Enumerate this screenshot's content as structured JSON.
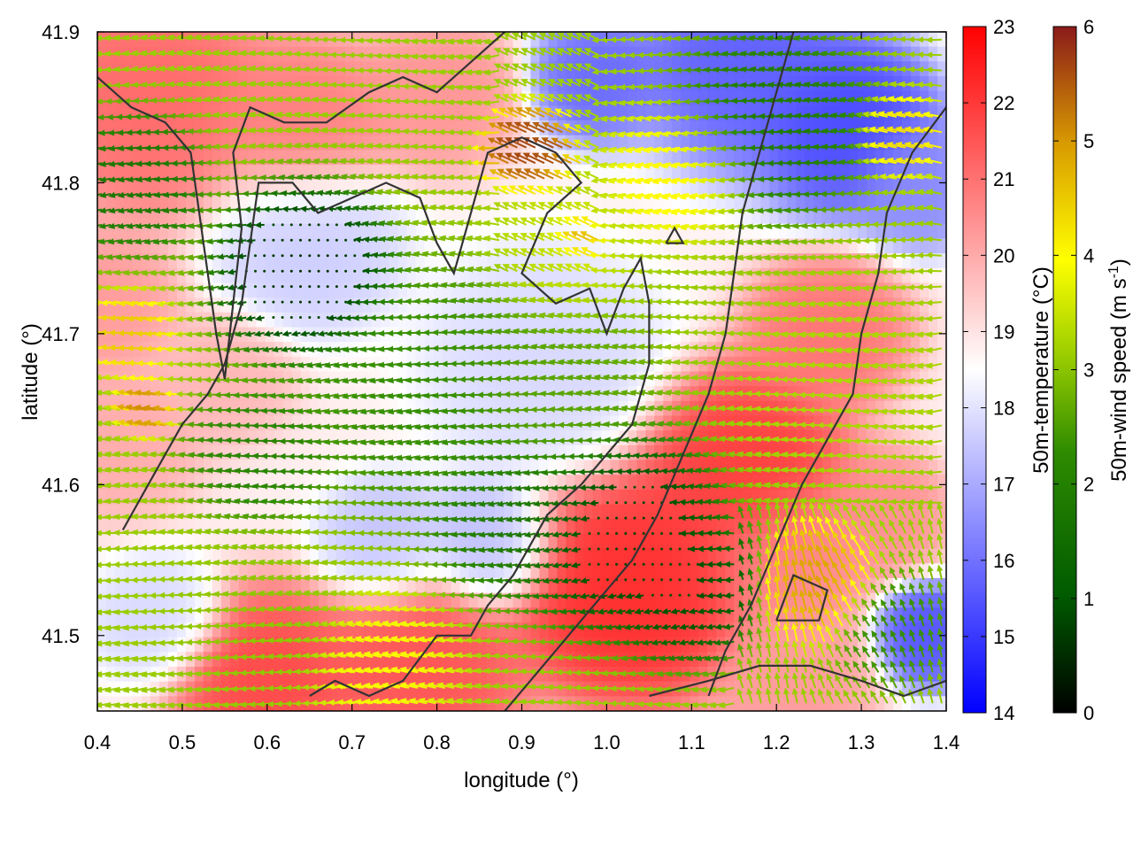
{
  "chart_data": {
    "type": "heatmap",
    "title": "",
    "xlabel": "longitude (°)",
    "ylabel": "latitude (°)",
    "xlim": [
      0.4,
      1.4
    ],
    "ylim": [
      41.45,
      41.9
    ],
    "xticks": [
      "0.4",
      "0.5",
      "0.6",
      "0.7",
      "0.8",
      "0.9",
      "1.0",
      "1.1",
      "1.2",
      "1.3",
      "1.4"
    ],
    "yticks": [
      "41.5",
      "41.6",
      "41.7",
      "41.8",
      "41.9"
    ],
    "temperature_colorbar": {
      "label": "50m-temperature (°C)",
      "range": [
        14,
        23
      ],
      "ticks": [
        "14",
        "15",
        "16",
        "17",
        "18",
        "19",
        "20",
        "21",
        "22",
        "23"
      ],
      "colors": [
        "#0000ff",
        "#ffffff",
        "#ff0000"
      ]
    },
    "wind_colorbar": {
      "label_main": "50m-wind speed (m s",
      "label_sup": "-1",
      "label_end": ")",
      "range": [
        0,
        6
      ],
      "ticks": [
        "0",
        "1",
        "2",
        "3",
        "4",
        "5",
        "6"
      ],
      "colors": [
        "#000000",
        "#005a00",
        "#2e8b00",
        "#9acd00",
        "#ffff00",
        "#d89a00",
        "#8b1a1a"
      ]
    },
    "contour_color": "#333333",
    "temperature_blobs": [
      {
        "lon": 0.46,
        "lat": 41.86,
        "temp": 21.2,
        "r": 0.09
      },
      {
        "lon": 0.4,
        "lat": 41.72,
        "temp": 20.3,
        "r": 0.06
      },
      {
        "lon": 0.43,
        "lat": 41.63,
        "temp": 20.0,
        "r": 0.06
      },
      {
        "lon": 0.64,
        "lat": 41.84,
        "temp": 20.8,
        "r": 0.07
      },
      {
        "lon": 0.8,
        "lat": 41.86,
        "temp": 20.4,
        "r": 0.06
      },
      {
        "lon": 0.65,
        "lat": 41.76,
        "temp": 17.6,
        "r": 0.07
      },
      {
        "lon": 0.55,
        "lat": 41.67,
        "temp": 19.8,
        "r": 0.05
      },
      {
        "lon": 0.99,
        "lat": 41.87,
        "temp": 15.8,
        "r": 0.05
      },
      {
        "lon": 1.16,
        "lat": 41.88,
        "temp": 15.6,
        "r": 0.08
      },
      {
        "lon": 1.28,
        "lat": 41.84,
        "temp": 15.2,
        "r": 0.07
      },
      {
        "lon": 1.37,
        "lat": 41.8,
        "temp": 16.4,
        "r": 0.05
      },
      {
        "lon": 0.93,
        "lat": 41.68,
        "temp": 17.8,
        "r": 0.09
      },
      {
        "lon": 0.86,
        "lat": 41.56,
        "temp": 17.3,
        "r": 0.05
      },
      {
        "lon": 0.74,
        "lat": 41.56,
        "temp": 17.4,
        "r": 0.05
      },
      {
        "lon": 1.03,
        "lat": 41.53,
        "temp": 22.3,
        "r": 0.09
      },
      {
        "lon": 1.16,
        "lat": 41.61,
        "temp": 22.0,
        "r": 0.08
      },
      {
        "lon": 1.26,
        "lat": 41.7,
        "temp": 21.0,
        "r": 0.06
      },
      {
        "lon": 1.22,
        "lat": 41.55,
        "temp": 20.6,
        "r": 0.06
      },
      {
        "lon": 1.32,
        "lat": 41.58,
        "temp": 20.5,
        "r": 0.05
      },
      {
        "lon": 0.78,
        "lat": 41.48,
        "temp": 21.6,
        "r": 0.08
      },
      {
        "lon": 0.6,
        "lat": 41.47,
        "temp": 21.8,
        "r": 0.07
      },
      {
        "lon": 1.22,
        "lat": 41.47,
        "temp": 20.3,
        "r": 0.06
      },
      {
        "lon": 1.38,
        "lat": 41.5,
        "temp": 15.4,
        "r": 0.04
      },
      {
        "lon": 0.47,
        "lat": 41.51,
        "temp": 17.8,
        "r": 0.05
      }
    ],
    "wind_blobs": [
      {
        "lon": 0.65,
        "lat": 41.74,
        "speed": 0.4,
        "r": 0.06
      },
      {
        "lon": 0.6,
        "lat": 41.62,
        "speed": 1.8,
        "r": 0.05
      },
      {
        "lon": 0.8,
        "lat": 41.66,
        "speed": 2.0,
        "r": 0.09
      },
      {
        "lon": 0.95,
        "lat": 41.66,
        "speed": 2.4,
        "r": 0.07
      },
      {
        "lon": 0.9,
        "lat": 41.58,
        "speed": 1.6,
        "r": 0.06
      },
      {
        "lon": 1.02,
        "lat": 41.57,
        "speed": 0.6,
        "r": 0.07
      },
      {
        "lon": 1.1,
        "lat": 41.53,
        "speed": 0.8,
        "r": 0.05
      },
      {
        "lon": 0.96,
        "lat": 41.75,
        "speed": 3.4,
        "r": 0.05
      },
      {
        "lon": 0.92,
        "lat": 41.82,
        "speed": 5.8,
        "r": 0.03
      },
      {
        "lon": 0.98,
        "lat": 41.76,
        "speed": 5.6,
        "r": 0.02
      },
      {
        "lon": 1.1,
        "lat": 41.81,
        "speed": 4.2,
        "r": 0.05
      },
      {
        "lon": 1.2,
        "lat": 41.84,
        "speed": 1.6,
        "r": 0.07
      },
      {
        "lon": 1.36,
        "lat": 41.83,
        "speed": 4.4,
        "r": 0.03
      },
      {
        "lon": 0.45,
        "lat": 41.8,
        "speed": 1.5,
        "r": 0.05
      },
      {
        "lon": 0.45,
        "lat": 41.7,
        "speed": 4.6,
        "r": 0.03
      },
      {
        "lon": 0.47,
        "lat": 41.65,
        "speed": 5.2,
        "r": 0.02
      },
      {
        "lon": 1.25,
        "lat": 41.53,
        "speed": 5.0,
        "r": 0.04
      },
      {
        "lon": 1.3,
        "lat": 41.67,
        "speed": 3.2,
        "r": 0.07
      },
      {
        "lon": 0.75,
        "lat": 41.48,
        "speed": 4.0,
        "r": 0.05
      },
      {
        "lon": 0.6,
        "lat": 41.51,
        "speed": 2.9,
        "r": 0.06
      },
      {
        "lon": 1.34,
        "lat": 41.5,
        "speed": 2.0,
        "r": 0.04
      }
    ],
    "contours": [
      [
        [
          0.43,
          41.57
        ],
        [
          0.46,
          41.6
        ],
        [
          0.5,
          41.64
        ],
        [
          0.53,
          41.66
        ],
        [
          0.55,
          41.68
        ],
        [
          0.57,
          41.72
        ],
        [
          0.58,
          41.76
        ],
        [
          0.59,
          41.8
        ],
        [
          0.63,
          41.8
        ],
        [
          0.66,
          41.78
        ],
        [
          0.7,
          41.79
        ],
        [
          0.74,
          41.8
        ],
        [
          0.78,
          41.79
        ],
        [
          0.8,
          41.76
        ],
        [
          0.82,
          41.74
        ],
        [
          0.84,
          41.78
        ],
        [
          0.86,
          41.82
        ],
        [
          0.9,
          41.83
        ],
        [
          0.94,
          41.82
        ],
        [
          0.97,
          41.8
        ],
        [
          0.93,
          41.78
        ],
        [
          0.9,
          41.74
        ],
        [
          0.94,
          41.72
        ],
        [
          0.98,
          41.73
        ],
        [
          1.0,
          41.7
        ],
        [
          1.02,
          41.73
        ],
        [
          1.04,
          41.75
        ],
        [
          1.05,
          41.72
        ],
        [
          1.05,
          41.68
        ],
        [
          1.03,
          41.64
        ],
        [
          1.0,
          41.62
        ],
        [
          0.97,
          41.6
        ],
        [
          0.93,
          41.58
        ],
        [
          0.89,
          41.54
        ],
        [
          0.86,
          41.52
        ],
        [
          0.84,
          41.5
        ],
        [
          0.8,
          41.5
        ],
        [
          0.76,
          41.47
        ],
        [
          0.72,
          41.46
        ],
        [
          0.68,
          41.47
        ],
        [
          0.65,
          41.46
        ]
      ],
      [
        [
          0.4,
          41.87
        ],
        [
          0.44,
          41.85
        ],
        [
          0.48,
          41.84
        ],
        [
          0.51,
          41.82
        ],
        [
          0.52,
          41.78
        ],
        [
          0.53,
          41.74
        ],
        [
          0.54,
          41.7
        ],
        [
          0.55,
          41.67
        ],
        [
          0.56,
          41.72
        ],
        [
          0.57,
          41.77
        ],
        [
          0.56,
          41.82
        ],
        [
          0.58,
          41.85
        ],
        [
          0.62,
          41.84
        ],
        [
          0.67,
          41.84
        ],
        [
          0.72,
          41.86
        ],
        [
          0.76,
          41.87
        ],
        [
          0.8,
          41.86
        ],
        [
          0.84,
          41.88
        ],
        [
          0.88,
          41.9
        ]
      ],
      [
        [
          1.22,
          41.9
        ],
        [
          1.2,
          41.86
        ],
        [
          1.18,
          41.82
        ],
        [
          1.16,
          41.78
        ],
        [
          1.15,
          41.74
        ],
        [
          1.14,
          41.7
        ],
        [
          1.12,
          41.66
        ],
        [
          1.09,
          41.62
        ],
        [
          1.06,
          41.58
        ],
        [
          1.03,
          41.55
        ],
        [
          1.0,
          41.53
        ],
        [
          0.97,
          41.51
        ],
        [
          0.94,
          41.49
        ],
        [
          0.91,
          41.47
        ],
        [
          0.88,
          41.45
        ]
      ],
      [
        [
          1.4,
          41.85
        ],
        [
          1.36,
          41.82
        ],
        [
          1.33,
          41.78
        ],
        [
          1.32,
          41.74
        ],
        [
          1.3,
          41.7
        ],
        [
          1.29,
          41.66
        ],
        [
          1.26,
          41.63
        ],
        [
          1.23,
          41.6
        ],
        [
          1.2,
          41.56
        ],
        [
          1.17,
          41.52
        ],
        [
          1.14,
          41.49
        ],
        [
          1.12,
          41.46
        ]
      ],
      [
        [
          1.07,
          41.76
        ],
        [
          1.09,
          41.76
        ],
        [
          1.08,
          41.77
        ],
        [
          1.07,
          41.76
        ]
      ],
      [
        [
          1.2,
          41.51
        ],
        [
          1.25,
          41.51
        ],
        [
          1.26,
          41.53
        ],
        [
          1.22,
          41.54
        ],
        [
          1.2,
          41.51
        ]
      ],
      [
        [
          1.05,
          41.46
        ],
        [
          1.12,
          41.47
        ],
        [
          1.18,
          41.48
        ],
        [
          1.24,
          41.48
        ],
        [
          1.3,
          41.47
        ],
        [
          1.35,
          41.46
        ],
        [
          1.4,
          41.47
        ]
      ]
    ]
  }
}
